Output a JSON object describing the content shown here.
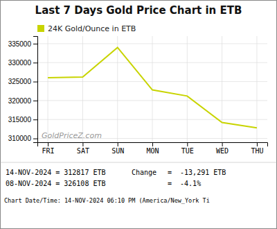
{
  "chart_data": {
    "type": "line",
    "title": "Last 7 Days Gold Price Chart in ETB",
    "categories": [
      "FRI",
      "SAT",
      "SUN",
      "MON",
      "TUE",
      "WED",
      "THU"
    ],
    "series": [
      {
        "name": "24K Gold/Ounce in ETB",
        "color": "#c8d400",
        "values": [
          326000,
          326200,
          334000,
          322800,
          321200,
          314200,
          312817
        ]
      }
    ],
    "ylim": [
      309000,
      337000
    ],
    "yticks": [
      310000,
      315000,
      320000,
      325000,
      330000,
      335000
    ],
    "grid": true,
    "legend": "upper left",
    "annotations": [
      "GoldPriceZ.com",
      "14-NOV-2024 = 312817 ETB",
      "08-NOV-2024 = 326108 ETB",
      "Change",
      "=  -13,291 ETB",
      "=  -4.1%",
      "Chart Date/Time: 14-NOV-2024 06:10 PM (America/New_York Ti"
    ]
  }
}
